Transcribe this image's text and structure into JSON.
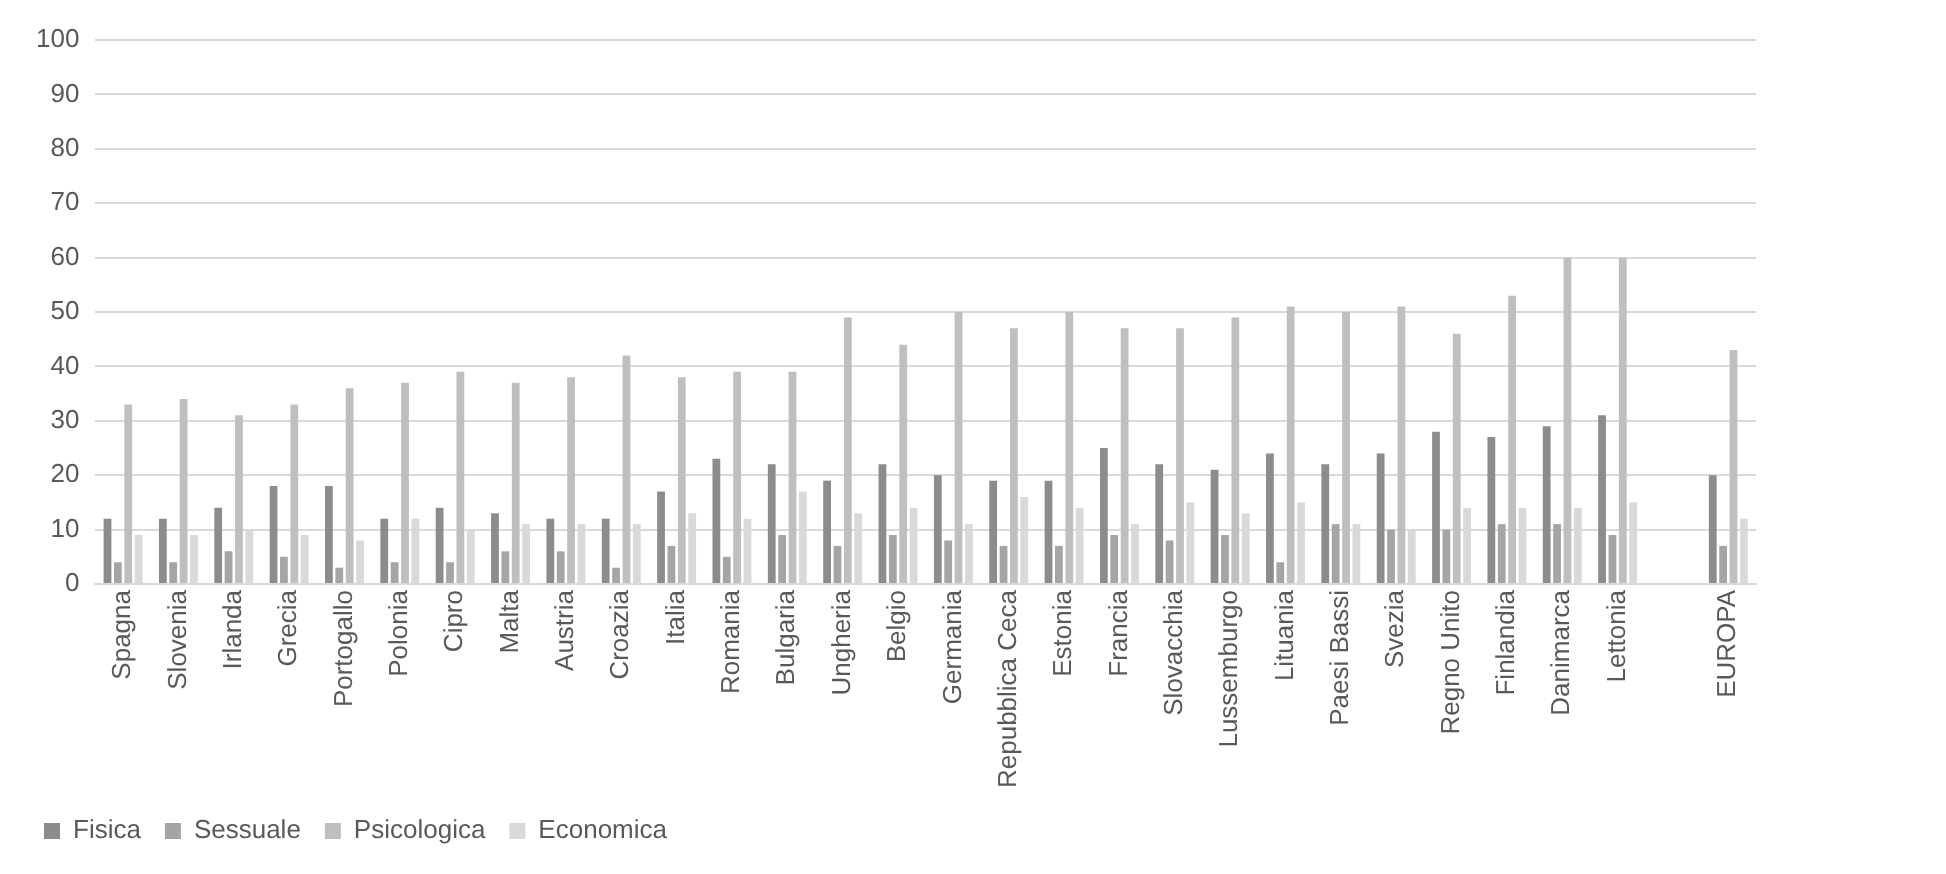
{
  "chart_data": {
    "type": "bar",
    "categories": [
      "Spagna",
      "Slovenia",
      "Irlanda",
      "Grecia",
      "Portogallo",
      "Polonia",
      "Cipro",
      "Malta",
      "Austria",
      "Croazia",
      "Italia",
      "Romania",
      "Bulgaria",
      "Ungheria",
      "Belgio",
      "Germania",
      "Repubblica Ceca",
      "Estonia",
      "Francia",
      "Slovacchia",
      "Lussemburgo",
      "Lituania",
      "Paesi Bassi",
      "Svezia",
      "Regno Unito",
      "Finlandia",
      "Danimarca",
      "Lettonia",
      null,
      "EUROPA"
    ],
    "series": [
      {
        "name": "Fisica",
        "color": "#8c8c8c",
        "values": [
          12,
          12,
          14,
          18,
          18,
          12,
          14,
          13,
          12,
          12,
          17,
          23,
          22,
          19,
          22,
          20,
          19,
          19,
          25,
          22,
          21,
          24,
          22,
          24,
          28,
          27,
          29,
          31,
          null,
          20
        ]
      },
      {
        "name": "Sessuale",
        "color": "#a5a5a5",
        "values": [
          4,
          4,
          6,
          5,
          3,
          4,
          4,
          6,
          6,
          3,
          7,
          5,
          9,
          7,
          9,
          8,
          7,
          7,
          9,
          8,
          9,
          4,
          11,
          10,
          10,
          11,
          11,
          9,
          null,
          7
        ]
      },
      {
        "name": "Psicologica",
        "color": "#bfbfbf",
        "values": [
          33,
          34,
          31,
          33,
          36,
          37,
          39,
          37,
          38,
          42,
          38,
          39,
          39,
          49,
          44,
          50,
          47,
          50,
          47,
          47,
          49,
          51,
          50,
          51,
          46,
          53,
          60,
          60,
          null,
          43
        ]
      },
      {
        "name": "Economica",
        "color": "#d9d9d9",
        "values": [
          9,
          9,
          10,
          9,
          8,
          12,
          10,
          11,
          11,
          11,
          13,
          12,
          17,
          13,
          14,
          11,
          16,
          14,
          11,
          15,
          13,
          15,
          11,
          10,
          14,
          14,
          14,
          15,
          null,
          12
        ]
      }
    ],
    "ylim": [
      0,
      100
    ],
    "yticks": [
      0,
      10,
      20,
      30,
      40,
      50,
      60,
      70,
      80,
      90,
      100
    ],
    "grid": "y",
    "legend": "bottom left"
  }
}
